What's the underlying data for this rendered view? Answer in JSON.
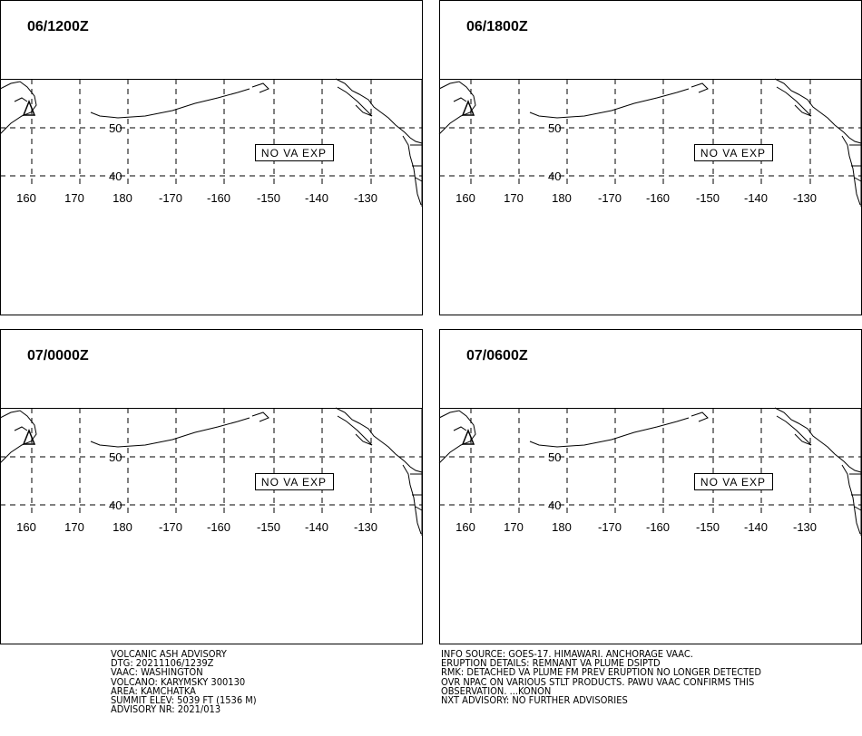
{
  "panels": [
    {
      "time": "06/1200Z"
    },
    {
      "time": "06/1800Z"
    },
    {
      "time": "07/0000Z"
    },
    {
      "time": "07/0600Z"
    }
  ],
  "map": {
    "lat_labels": [
      "50",
      "40"
    ],
    "lon_labels": [
      "160",
      "170",
      "180",
      "-170",
      "-160",
      "-150",
      "-140",
      "-130"
    ],
    "note": "NO VA EXP"
  },
  "footer": {
    "left": [
      "VOLCANIC ASH ADVISORY",
      "DTG: 20211106/1239Z",
      "VAAC: WASHINGTON",
      "VOLCANO: KARYMSKY 300130",
      "AREA: KAMCHATKA",
      "SUMMIT ELEV: 5039 FT (1536 M)",
      "ADVISORY NR: 2021/013"
    ],
    "right": [
      "INFO SOURCE: GOES-17. HIMAWARI. ANCHORAGE VAAC.",
      "ERUPTION DETAILS: REMNANT VA PLUME DSIPTD",
      "RMK: DETACHED VA PLUME FM PREV ERUPTION NO LONGER DETECTED",
      "OVR NPAC ON VARIOUS STLT PRODUCTS. PAWU VAAC CONFIRMS THIS",
      "OBSERVATION. ...KONON",
      "NXT ADVISORY: NO FURTHER ADVISORIES"
    ]
  }
}
